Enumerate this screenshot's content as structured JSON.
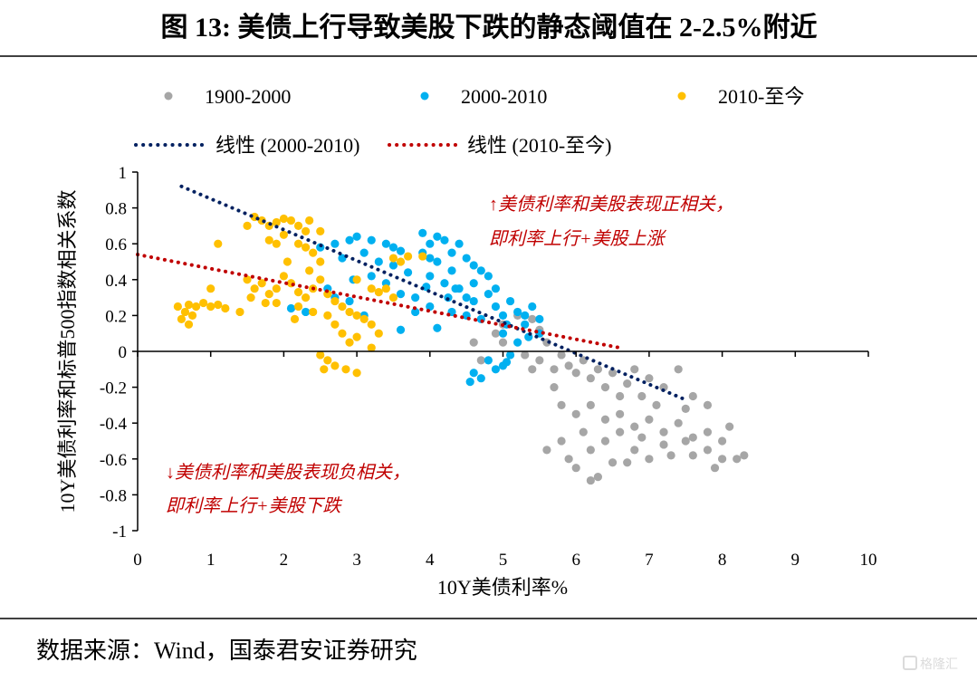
{
  "title": "图 13: 美债上行导致美股下跌的静态阈值在 2-2.5%附近",
  "source": "数据来源：Wind，国泰君安证券研究",
  "watermark": "格隆汇",
  "chart_data": {
    "type": "scatter",
    "xlabel": "10Y美债利率%",
    "ylabel": "10Y美债利率和标普500指数相关系数",
    "xlim": [
      0,
      10
    ],
    "ylim": [
      -1,
      1
    ],
    "x_ticks": [
      "0",
      "1",
      "2",
      "3",
      "4",
      "5",
      "6",
      "7",
      "8",
      "9",
      "10"
    ],
    "y_ticks": [
      "1",
      "0.8",
      "0.6",
      "0.4",
      "0.2",
      "0",
      "-0.2",
      "-0.4",
      "-0.6",
      "-0.8",
      "-1"
    ],
    "grid": false,
    "legend_placement": "top",
    "annotations": [
      {
        "lines": [
          "↑美债利率和美股表现正相关，",
          "即利率上行+美股上涨"
        ]
      },
      {
        "lines": [
          "↓美债利率和美股表现负相关，",
          "即利率上行+美股下跌"
        ]
      }
    ],
    "series": [
      {
        "name": "1900-2000",
        "color": "#a6a6a6",
        "points": [
          [
            4.6,
            0.05
          ],
          [
            4.7,
            -0.05
          ],
          [
            4.9,
            0.1
          ],
          [
            5.0,
            0.15
          ],
          [
            5.2,
            0.2
          ],
          [
            5.4,
            0.18
          ],
          [
            5.5,
            0.12
          ],
          [
            5.6,
            0.05
          ],
          [
            5.3,
            -0.02
          ],
          [
            5.5,
            -0.05
          ],
          [
            5.7,
            -0.1
          ],
          [
            5.8,
            -0.02
          ],
          [
            5.9,
            -0.08
          ],
          [
            6.0,
            -0.12
          ],
          [
            6.1,
            -0.05
          ],
          [
            6.2,
            -0.15
          ],
          [
            6.3,
            -0.1
          ],
          [
            6.4,
            -0.2
          ],
          [
            6.5,
            -0.12
          ],
          [
            6.6,
            -0.25
          ],
          [
            6.7,
            -0.18
          ],
          [
            6.8,
            -0.1
          ],
          [
            7.0,
            -0.15
          ],
          [
            7.2,
            -0.2
          ],
          [
            7.4,
            -0.1
          ],
          [
            7.6,
            -0.25
          ],
          [
            7.8,
            -0.3
          ],
          [
            5.7,
            -0.2
          ],
          [
            5.8,
            -0.3
          ],
          [
            6.0,
            -0.35
          ],
          [
            6.2,
            -0.3
          ],
          [
            6.4,
            -0.38
          ],
          [
            6.6,
            -0.35
          ],
          [
            6.8,
            -0.42
          ],
          [
            7.0,
            -0.38
          ],
          [
            7.2,
            -0.45
          ],
          [
            7.4,
            -0.4
          ],
          [
            7.6,
            -0.48
          ],
          [
            7.8,
            -0.45
          ],
          [
            8.0,
            -0.5
          ],
          [
            8.1,
            -0.42
          ],
          [
            5.6,
            -0.55
          ],
          [
            5.8,
            -0.5
          ],
          [
            5.9,
            -0.6
          ],
          [
            6.1,
            -0.45
          ],
          [
            6.2,
            -0.55
          ],
          [
            6.3,
            -0.7
          ],
          [
            6.4,
            -0.5
          ],
          [
            6.5,
            -0.62
          ],
          [
            6.6,
            -0.45
          ],
          [
            6.8,
            -0.55
          ],
          [
            6.9,
            -0.48
          ],
          [
            7.0,
            -0.6
          ],
          [
            7.2,
            -0.52
          ],
          [
            7.3,
            -0.58
          ],
          [
            7.5,
            -0.5
          ],
          [
            7.6,
            -0.58
          ],
          [
            7.8,
            -0.55
          ],
          [
            7.9,
            -0.65
          ],
          [
            8.0,
            -0.6
          ],
          [
            8.2,
            -0.6
          ],
          [
            8.3,
            -0.58
          ],
          [
            6.2,
            -0.72
          ],
          [
            6.0,
            -0.65
          ],
          [
            6.7,
            -0.62
          ],
          [
            7.1,
            -0.3
          ],
          [
            6.9,
            -0.25
          ],
          [
            7.5,
            -0.32
          ],
          [
            5.4,
            -0.1
          ],
          [
            5.0,
            0.05
          ]
        ]
      },
      {
        "name": "2000-2010",
        "color": "#00b0f0",
        "points": [
          [
            2.1,
            0.24
          ],
          [
            2.3,
            0.22
          ],
          [
            2.5,
            0.58
          ],
          [
            2.7,
            0.6
          ],
          [
            2.9,
            0.62
          ],
          [
            3.0,
            0.64
          ],
          [
            2.8,
            0.52
          ],
          [
            3.1,
            0.55
          ],
          [
            3.2,
            0.62
          ],
          [
            3.4,
            0.6
          ],
          [
            3.5,
            0.58
          ],
          [
            3.6,
            0.56
          ],
          [
            3.3,
            0.5
          ],
          [
            2.6,
            0.35
          ],
          [
            2.7,
            0.3
          ],
          [
            2.95,
            0.4
          ],
          [
            3.2,
            0.42
          ],
          [
            3.4,
            0.38
          ],
          [
            3.6,
            0.32
          ],
          [
            3.8,
            0.3
          ],
          [
            3.9,
            0.55
          ],
          [
            4.0,
            0.6
          ],
          [
            4.1,
            0.64
          ],
          [
            4.2,
            0.62
          ],
          [
            3.9,
            0.66
          ],
          [
            4.0,
            0.52
          ],
          [
            4.1,
            0.5
          ],
          [
            4.3,
            0.55
          ],
          [
            4.4,
            0.6
          ],
          [
            4.5,
            0.52
          ],
          [
            4.6,
            0.48
          ],
          [
            4.7,
            0.45
          ],
          [
            4.8,
            0.42
          ],
          [
            4.3,
            0.45
          ],
          [
            4.0,
            0.42
          ],
          [
            4.2,
            0.38
          ],
          [
            4.4,
            0.35
          ],
          [
            4.5,
            0.3
          ],
          [
            4.6,
            0.28
          ],
          [
            4.8,
            0.32
          ],
          [
            4.9,
            0.25
          ],
          [
            5.0,
            0.2
          ],
          [
            5.1,
            0.28
          ],
          [
            5.2,
            0.22
          ],
          [
            5.3,
            0.2
          ],
          [
            5.4,
            0.25
          ],
          [
            5.5,
            0.18
          ],
          [
            5.3,
            0.15
          ],
          [
            5.0,
            0.1
          ],
          [
            5.2,
            0.05
          ],
          [
            5.5,
            0.1
          ],
          [
            4.7,
            0.18
          ],
          [
            4.5,
            0.2
          ],
          [
            3.8,
            0.22
          ],
          [
            4.0,
            0.25
          ],
          [
            4.3,
            0.22
          ],
          [
            3.5,
            0.48
          ],
          [
            3.7,
            0.44
          ],
          [
            3.95,
            0.36
          ],
          [
            4.25,
            0.3
          ],
          [
            4.6,
            0.38
          ],
          [
            4.9,
            0.35
          ],
          [
            5.05,
            0.15
          ],
          [
            5.35,
            0.08
          ],
          [
            5.1,
            -0.02
          ],
          [
            4.8,
            -0.05
          ],
          [
            4.9,
            -0.1
          ],
          [
            5.0,
            -0.08
          ],
          [
            4.6,
            -0.12
          ],
          [
            4.7,
            -0.15
          ],
          [
            4.55,
            -0.17
          ],
          [
            5.05,
            -0.06
          ],
          [
            3.6,
            0.12
          ],
          [
            4.1,
            0.13
          ],
          [
            4.35,
            0.35
          ],
          [
            2.9,
            0.28
          ],
          [
            3.1,
            0.2
          ]
        ]
      },
      {
        "name": "2010-至今",
        "color": "#ffc000",
        "points": [
          [
            0.55,
            0.25
          ],
          [
            0.65,
            0.22
          ],
          [
            0.7,
            0.26
          ],
          [
            0.8,
            0.25
          ],
          [
            0.9,
            0.27
          ],
          [
            1.0,
            0.25
          ],
          [
            1.1,
            0.26
          ],
          [
            0.6,
            0.18
          ],
          [
            0.7,
            0.15
          ],
          [
            0.75,
            0.2
          ],
          [
            1.2,
            0.24
          ],
          [
            1.4,
            0.22
          ],
          [
            1.0,
            0.35
          ],
          [
            1.1,
            0.6
          ],
          [
            1.5,
            0.7
          ],
          [
            1.6,
            0.75
          ],
          [
            1.7,
            0.73
          ],
          [
            1.8,
            0.7
          ],
          [
            1.9,
            0.72
          ],
          [
            2.0,
            0.74
          ],
          [
            2.1,
            0.73
          ],
          [
            2.2,
            0.7
          ],
          [
            1.8,
            0.62
          ],
          [
            1.9,
            0.6
          ],
          [
            2.0,
            0.65
          ],
          [
            2.2,
            0.6
          ],
          [
            2.3,
            0.58
          ],
          [
            2.4,
            0.55
          ],
          [
            2.5,
            0.5
          ],
          [
            2.35,
            0.73
          ],
          [
            2.5,
            0.67
          ],
          [
            2.3,
            0.67
          ],
          [
            1.5,
            0.4
          ],
          [
            1.6,
            0.35
          ],
          [
            1.7,
            0.38
          ],
          [
            1.8,
            0.32
          ],
          [
            1.9,
            0.35
          ],
          [
            2.0,
            0.42
          ],
          [
            2.1,
            0.38
          ],
          [
            2.2,
            0.33
          ],
          [
            2.3,
            0.3
          ],
          [
            2.4,
            0.35
          ],
          [
            2.5,
            0.4
          ],
          [
            2.6,
            0.32
          ],
          [
            2.7,
            0.28
          ],
          [
            2.8,
            0.25
          ],
          [
            2.9,
            0.22
          ],
          [
            3.0,
            0.2
          ],
          [
            3.1,
            0.18
          ],
          [
            3.2,
            0.15
          ],
          [
            3.3,
            0.1
          ],
          [
            2.6,
            0.2
          ],
          [
            2.4,
            0.22
          ],
          [
            2.2,
            0.25
          ],
          [
            1.9,
            0.27
          ],
          [
            2.7,
            0.15
          ],
          [
            2.8,
            0.1
          ],
          [
            2.9,
            0.05
          ],
          [
            3.0,
            0.08
          ],
          [
            3.2,
            0.02
          ],
          [
            2.5,
            -0.02
          ],
          [
            2.6,
            -0.05
          ],
          [
            2.7,
            -0.08
          ],
          [
            2.85,
            -0.1
          ],
          [
            3.0,
            -0.12
          ],
          [
            2.55,
            -0.1
          ],
          [
            3.3,
            0.33
          ],
          [
            3.4,
            0.35
          ],
          [
            3.5,
            0.3
          ],
          [
            3.2,
            0.35
          ],
          [
            3.0,
            0.4
          ],
          [
            3.5,
            0.52
          ],
          [
            3.7,
            0.53
          ],
          [
            3.9,
            0.53
          ],
          [
            3.6,
            0.5
          ],
          [
            2.35,
            0.45
          ],
          [
            2.05,
            0.5
          ],
          [
            1.55,
            0.3
          ],
          [
            2.15,
            0.18
          ],
          [
            1.75,
            0.27
          ]
        ]
      }
    ],
    "trendlines": [
      {
        "name": "线性 (2000-2010)",
        "color": "#002060",
        "x": [
          0.6,
          7.5
        ],
        "y": [
          0.92,
          -0.27
        ]
      },
      {
        "name": "线性 (2010-至今)",
        "color": "#c00000",
        "x": [
          0,
          6.6
        ],
        "y": [
          0.54,
          0.02
        ]
      }
    ]
  }
}
